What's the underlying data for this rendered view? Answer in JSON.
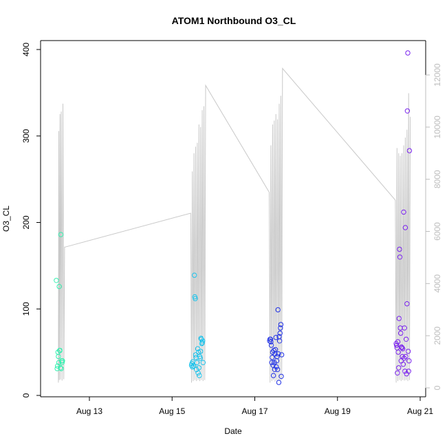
{
  "chart_data": {
    "type": "scatter",
    "title": "ATOM1 Northbound O3_CL",
    "xlabel": "Date",
    "ylabel": "O3_CL",
    "x_unit": "days in August",
    "xlim": [
      12.15,
      21.0
    ],
    "ylim": [
      0,
      400
    ],
    "y2lim": [
      0,
      12500
    ],
    "grid": false,
    "legend": "none",
    "x_ticks": [
      {
        "value": 13,
        "label": "Aug 13"
      },
      {
        "value": 15,
        "label": "Aug 15"
      },
      {
        "value": 17,
        "label": "Aug 17"
      },
      {
        "value": 19,
        "label": "Aug 19"
      },
      {
        "value": 21,
        "label": "Aug 21"
      }
    ],
    "y_ticks": [
      0,
      100,
      200,
      300,
      400
    ],
    "y2_ticks": [
      0,
      2000,
      4000,
      6000,
      8000,
      10000,
      12000
    ],
    "colors": {
      "trace": "#c8c8c8",
      "group1": "#35f0b0",
      "group2": "#1ac3ec",
      "group3": "#2233e6",
      "group4": "#7a22ee"
    },
    "secondary_trace": {
      "name": "",
      "axis": "right",
      "points": [
        [
          12.25,
          200
        ],
        [
          12.26,
          9850
        ],
        [
          12.27,
          300
        ],
        [
          12.29,
          10500
        ],
        [
          12.3,
          320
        ],
        [
          12.32,
          10600
        ],
        [
          12.34,
          280
        ],
        [
          12.36,
          10900
        ],
        [
          12.38,
          330
        ],
        [
          12.4,
          5400
        ],
        [
          12.41,
          5400
        ],
        [
          15.45,
          6700
        ],
        [
          15.47,
          200
        ],
        [
          15.49,
          8300
        ],
        [
          15.51,
          260
        ],
        [
          15.53,
          9000
        ],
        [
          15.55,
          300
        ],
        [
          15.57,
          9250
        ],
        [
          15.59,
          260
        ],
        [
          15.61,
          9400
        ],
        [
          15.63,
          300
        ],
        [
          15.65,
          10100
        ],
        [
          15.67,
          260
        ],
        [
          15.69,
          10000
        ],
        [
          15.71,
          300
        ],
        [
          15.73,
          10650
        ],
        [
          15.75,
          260
        ],
        [
          15.77,
          10800
        ],
        [
          15.79,
          300
        ],
        [
          15.81,
          11600
        ],
        [
          17.35,
          7500
        ],
        [
          17.37,
          200
        ],
        [
          17.39,
          9300
        ],
        [
          17.41,
          260
        ],
        [
          17.43,
          10100
        ],
        [
          17.45,
          300
        ],
        [
          17.47,
          10250
        ],
        [
          17.49,
          240
        ],
        [
          17.51,
          10500
        ],
        [
          17.53,
          300
        ],
        [
          17.55,
          10300
        ],
        [
          17.57,
          260
        ],
        [
          17.59,
          10900
        ],
        [
          17.61,
          280
        ],
        [
          17.63,
          11200
        ],
        [
          17.65,
          300
        ],
        [
          17.67,
          12250
        ],
        [
          20.4,
          7200
        ],
        [
          20.42,
          200
        ],
        [
          20.44,
          9200
        ],
        [
          20.46,
          260
        ],
        [
          20.48,
          9000
        ],
        [
          20.5,
          300
        ],
        [
          20.52,
          8900
        ],
        [
          20.54,
          260
        ],
        [
          20.56,
          9000
        ],
        [
          20.58,
          300
        ],
        [
          20.6,
          9300
        ],
        [
          20.62,
          280
        ],
        [
          20.64,
          9600
        ],
        [
          20.66,
          300
        ],
        [
          20.68,
          9900
        ],
        [
          20.7,
          260
        ],
        [
          20.72,
          11300
        ],
        [
          20.74,
          300
        ],
        [
          20.76,
          10400
        ]
      ]
    },
    "series": [
      {
        "name": "",
        "color_key": "group1",
        "points": [
          [
            12.2,
            133
          ],
          [
            12.22,
            31
          ],
          [
            12.23,
            34
          ],
          [
            12.24,
            50
          ],
          [
            12.25,
            45
          ],
          [
            12.26,
            38
          ],
          [
            12.27,
            126
          ],
          [
            12.28,
            52
          ],
          [
            12.29,
            52
          ],
          [
            12.3,
            32
          ],
          [
            12.31,
            186
          ],
          [
            12.32,
            31
          ],
          [
            12.33,
            40
          ],
          [
            12.34,
            38
          ],
          [
            12.35,
            40
          ]
        ]
      },
      {
        "name": "",
        "color_key": "group2",
        "points": [
          [
            15.47,
            35
          ],
          [
            15.48,
            37
          ],
          [
            15.49,
            33
          ],
          [
            15.5,
            39
          ],
          [
            15.52,
            34
          ],
          [
            15.54,
            139
          ],
          [
            15.55,
            114
          ],
          [
            15.56,
            112
          ],
          [
            15.57,
            47
          ],
          [
            15.58,
            44
          ],
          [
            15.59,
            30
          ],
          [
            15.6,
            38
          ],
          [
            15.62,
            54
          ],
          [
            15.63,
            26
          ],
          [
            15.64,
            50
          ],
          [
            15.65,
            32
          ],
          [
            15.66,
            23
          ],
          [
            15.67,
            45
          ],
          [
            15.68,
            43
          ],
          [
            15.69,
            51
          ],
          [
            15.7,
            66
          ],
          [
            15.71,
            65
          ],
          [
            15.72,
            60
          ],
          [
            15.73,
            61
          ],
          [
            15.74,
            63
          ],
          [
            15.75,
            38
          ]
        ]
      },
      {
        "name": "",
        "color_key": "group3",
        "points": [
          [
            17.36,
            63
          ],
          [
            17.37,
            65
          ],
          [
            17.38,
            65
          ],
          [
            17.39,
            62
          ],
          [
            17.4,
            58
          ],
          [
            17.41,
            38
          ],
          [
            17.42,
            44
          ],
          [
            17.43,
            50
          ],
          [
            17.44,
            35
          ],
          [
            17.45,
            23
          ],
          [
            17.46,
            52
          ],
          [
            17.47,
            38
          ],
          [
            17.48,
            30
          ],
          [
            17.49,
            48
          ],
          [
            17.5,
            53
          ],
          [
            17.51,
            67
          ],
          [
            17.52,
            33
          ],
          [
            17.53,
            40
          ],
          [
            17.54,
            45
          ],
          [
            17.55,
            30
          ],
          [
            17.56,
            99
          ],
          [
            17.57,
            48
          ],
          [
            17.58,
            15
          ],
          [
            17.59,
            68
          ],
          [
            17.6,
            63
          ],
          [
            17.61,
            72
          ],
          [
            17.62,
            78
          ],
          [
            17.63,
            82
          ],
          [
            17.64,
            22
          ],
          [
            17.65,
            47
          ]
        ]
      },
      {
        "name": "",
        "color_key": "group4",
        "points": [
          [
            20.42,
            60
          ],
          [
            20.43,
            58
          ],
          [
            20.44,
            55
          ],
          [
            20.45,
            26
          ],
          [
            20.46,
            62
          ],
          [
            20.47,
            50
          ],
          [
            20.48,
            32
          ],
          [
            20.49,
            89
          ],
          [
            20.5,
            169
          ],
          [
            20.51,
            160
          ],
          [
            20.52,
            78
          ],
          [
            20.53,
            72
          ],
          [
            20.54,
            40
          ],
          [
            20.55,
            56
          ],
          [
            20.56,
            55
          ],
          [
            20.57,
            45
          ],
          [
            20.58,
            54
          ],
          [
            20.59,
            36
          ],
          [
            20.6,
            212
          ],
          [
            20.61,
            43
          ],
          [
            20.62,
            78
          ],
          [
            20.63,
            28
          ],
          [
            20.64,
            194
          ],
          [
            20.65,
            45
          ],
          [
            20.66,
            65
          ],
          [
            20.67,
            25
          ],
          [
            20.68,
            106
          ],
          [
            20.69,
            329
          ],
          [
            20.7,
            396
          ],
          [
            20.71,
            51
          ],
          [
            20.72,
            28
          ],
          [
            20.73,
            40
          ],
          [
            20.74,
            283
          ]
        ]
      }
    ]
  }
}
